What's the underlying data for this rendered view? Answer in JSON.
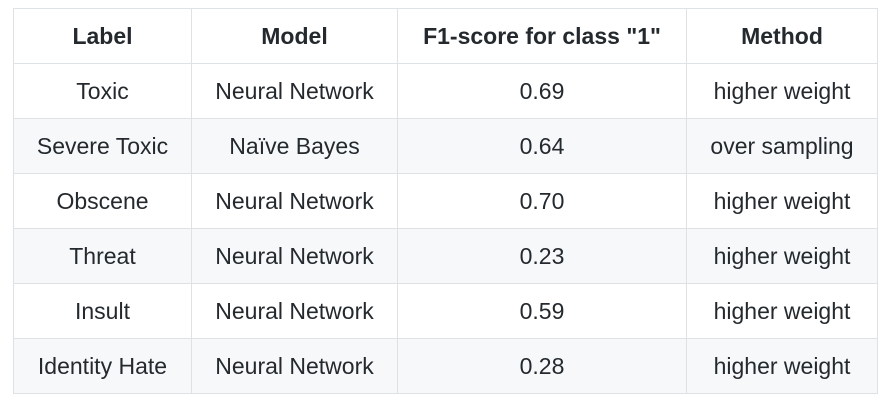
{
  "table": {
    "headers": [
      "Label",
      "Model",
      "F1-score for class \"1\"",
      "Method"
    ],
    "rows": [
      [
        "Toxic",
        "Neural Network",
        "0.69",
        "higher weight"
      ],
      [
        "Severe Toxic",
        "Naïve Bayes",
        "0.64",
        "over sampling"
      ],
      [
        "Obscene",
        "Neural Network",
        "0.70",
        "higher weight"
      ],
      [
        "Threat",
        "Neural Network",
        "0.23",
        "higher weight"
      ],
      [
        "Insult",
        "Neural Network",
        "0.59",
        "higher weight"
      ],
      [
        "Identity Hate",
        "Neural Network",
        "0.28",
        "higher weight"
      ]
    ]
  }
}
